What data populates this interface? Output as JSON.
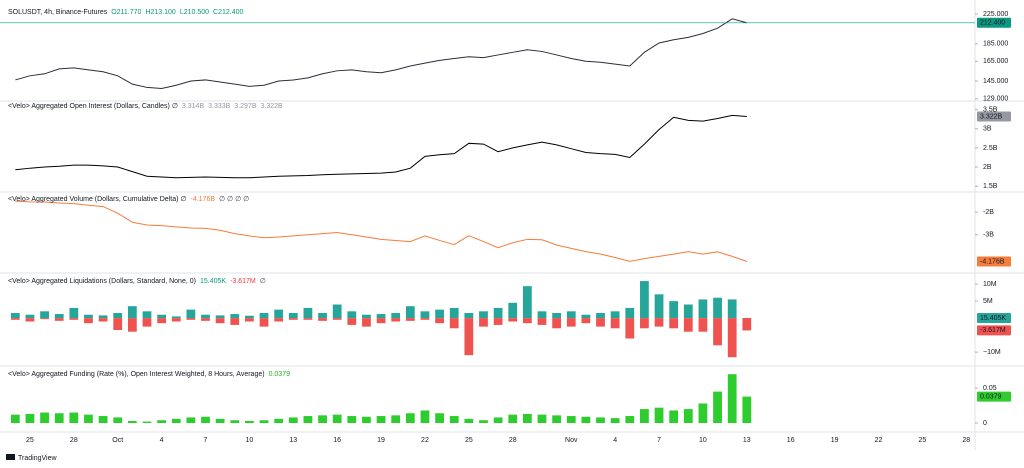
{
  "time_axis": {
    "categories": [
      null,
      "25",
      null,
      null,
      "28",
      null,
      null,
      "Oct",
      null,
      null,
      "4",
      null,
      null,
      "7",
      null,
      null,
      "10",
      null,
      null,
      "13",
      null,
      null,
      "16",
      null,
      null,
      "19",
      null,
      null,
      "22",
      null,
      null,
      "25",
      null,
      null,
      "28",
      null,
      null,
      null,
      "Nov",
      null,
      null,
      "4",
      null,
      null,
      "7",
      null,
      null,
      "10",
      null,
      null,
      "13",
      null,
      null,
      "16",
      null,
      null,
      "19",
      null,
      null,
      "22",
      null,
      null,
      "25",
      null,
      null,
      "28"
    ]
  },
  "brand": "TradingView",
  "chart_data": [
    {
      "type": "line",
      "title": "SOLUSDT, 4h, Binance-Futures",
      "legend_values": [
        "O211.770",
        "H213.100",
        "L210.500",
        "C212.400"
      ],
      "legend_colors": [
        "#089981",
        "#089981",
        "#089981",
        "#089981"
      ],
      "color": "#2a2e39",
      "label_color": "#089981",
      "last_value_label": "212.400",
      "log": true,
      "ylim": [
        128,
        234
      ],
      "yticks": [
        {
          "value": 225,
          "label": "225.000"
        },
        {
          "value": 185,
          "label": "185.000"
        },
        {
          "value": 165,
          "label": "165.000"
        },
        {
          "value": 145,
          "label": "145.000"
        },
        {
          "value": 129,
          "label": "129.000"
        }
      ],
      "values": [
        146,
        150,
        152,
        157,
        158,
        156,
        154,
        150,
        142,
        139,
        138,
        141,
        145,
        146,
        144,
        142,
        140,
        141,
        145,
        146,
        148,
        152,
        155,
        156,
        154,
        153,
        156,
        160,
        163,
        166,
        168,
        170,
        169,
        172,
        175,
        178,
        176,
        172,
        168,
        165,
        164,
        162,
        160,
        175,
        186,
        190,
        193,
        198,
        205,
        218,
        212.4,
        null,
        null,
        null,
        null,
        null,
        null,
        null,
        null,
        null,
        null,
        null,
        null,
        null,
        null,
        null
      ]
    },
    {
      "type": "line",
      "title": "<Velo> Aggregated Open Interest (Dollars, Candles) ∅",
      "legend_values": [
        "3.314B",
        "3.333B",
        "3.297B",
        "3.322B"
      ],
      "legend_colors": [
        "#9598a1",
        "#9598a1",
        "#9598a1",
        "#9598a1"
      ],
      "color": "#000000",
      "label_color": "#9598a1",
      "last_value_label": "3.322B",
      "ylim": [
        1.4,
        3.7
      ],
      "yticks": [
        {
          "value": 3.5,
          "label": "3.5B"
        },
        {
          "value": 3,
          "label": "3B"
        },
        {
          "value": 2.5,
          "label": "2.5B"
        },
        {
          "value": 2,
          "label": "2B"
        },
        {
          "value": 1.5,
          "label": "1.5B"
        }
      ],
      "values": [
        1.93,
        1.97,
        2.0,
        2.02,
        2.05,
        2.05,
        2.03,
        2.0,
        1.88,
        1.76,
        1.74,
        1.72,
        1.73,
        1.74,
        1.73,
        1.72,
        1.72,
        1.74,
        1.76,
        1.77,
        1.78,
        1.8,
        1.81,
        1.82,
        1.83,
        1.84,
        1.87,
        1.97,
        2.28,
        2.32,
        2.35,
        2.62,
        2.6,
        2.4,
        2.5,
        2.58,
        2.65,
        2.58,
        2.48,
        2.38,
        2.35,
        2.33,
        2.25,
        2.6,
        2.98,
        3.3,
        3.22,
        3.2,
        3.27,
        3.35,
        3.322,
        null,
        null,
        null,
        null,
        null,
        null,
        null,
        null,
        null,
        null,
        null,
        null,
        null,
        null,
        null
      ]
    },
    {
      "type": "line",
      "title": "<Velo> Aggregated Volume (Dollars, Cumulative Delta) ∅",
      "legend_values": [
        "-4.176B",
        "∅ ∅ ∅ ∅"
      ],
      "legend_colors": [
        "#f57c3b",
        "#434651"
      ],
      "color": "#f57c3b",
      "last_value_label": "-4.176B",
      "ylim": [
        -4.55,
        -1.25
      ],
      "yticks": [
        {
          "value": -2,
          "label": "-2B"
        },
        {
          "value": -3,
          "label": "-3B"
        }
      ],
      "values": [
        -1.52,
        -1.55,
        -1.56,
        -1.6,
        -1.63,
        -1.7,
        -1.76,
        -2.05,
        -2.45,
        -2.57,
        -2.6,
        -2.65,
        -2.7,
        -2.72,
        -2.8,
        -2.95,
        -3.05,
        -3.13,
        -3.1,
        -3.05,
        -3.0,
        -2.95,
        -2.9,
        -3.0,
        -3.1,
        -3.2,
        -3.25,
        -3.3,
        -3.05,
        -3.25,
        -3.43,
        -3.04,
        -3.3,
        -3.57,
        -3.35,
        -3.2,
        -3.22,
        -3.45,
        -3.6,
        -3.74,
        -3.85,
        -4.0,
        -4.17,
        -4.05,
        -3.95,
        -3.85,
        -3.74,
        -3.85,
        -3.75,
        -3.95,
        -4.176,
        null,
        null,
        null,
        null,
        null,
        null,
        null,
        null,
        null,
        null,
        null,
        null,
        null,
        null,
        null
      ]
    },
    {
      "type": "bar",
      "title": "<Velo> Aggregated Liquidations (Dollars, Standard, None, 0)",
      "legend_values": [
        "15.405K",
        "-3.617M",
        "∅"
      ],
      "legend_colors": [
        "#089981",
        "#f23645",
        "#434651"
      ],
      "ylim": [
        -13.5,
        11.8
      ],
      "yticks": [
        {
          "value": 10,
          "label": "10M"
        },
        {
          "value": 5,
          "label": "5M"
        },
        {
          "value": -10,
          "label": "−10M"
        }
      ],
      "series": [
        {
          "color": "#26a69a",
          "last_value_label": "15.405K",
          "values": [
            1.5,
            1.0,
            2.0,
            1.2,
            3.0,
            1.0,
            0.8,
            1.5,
            3.5,
            2.0,
            1.0,
            0.5,
            2.5,
            1.0,
            0.8,
            1.2,
            0.7,
            1.5,
            2.5,
            1.5,
            3.0,
            1.5,
            4.0,
            2.0,
            1.0,
            1.2,
            1.5,
            3.5,
            2.0,
            2.5,
            3.0,
            1.5,
            2.0,
            3.0,
            4.5,
            9.4,
            2.0,
            1.5,
            2.0,
            1.0,
            1.5,
            2.0,
            3.0,
            10.9,
            7.0,
            5.0,
            4.0,
            5.5,
            6.0,
            5.5,
            0.015405,
            null,
            null,
            null,
            null,
            null,
            null,
            null,
            null,
            null,
            null,
            null,
            null,
            null,
            null,
            null
          ]
        },
        {
          "color": "#ef5350",
          "last_value_label": "-3.617M",
          "values": [
            -0.5,
            -1.0,
            -0.3,
            -0.8,
            -0.5,
            -1.5,
            -1.0,
            -3.5,
            -4.0,
            -2.5,
            -1.5,
            -1.0,
            -0.5,
            -0.8,
            -1.5,
            -2.0,
            -1.0,
            -2.5,
            -1.0,
            -0.5,
            -0.5,
            -0.8,
            -0.5,
            -2.0,
            -2.5,
            -1.5,
            -1.0,
            -0.8,
            -0.5,
            -1.5,
            -3.0,
            -10.9,
            -2.5,
            -2.0,
            -1.0,
            -1.5,
            -2.0,
            -3.0,
            -2.5,
            -1.5,
            -2.5,
            -3.0,
            -6.0,
            -3.0,
            -2.5,
            -3.0,
            -4.0,
            -4.0,
            -8.0,
            -11.5,
            -3.617,
            null,
            null,
            null,
            null,
            null,
            null,
            null,
            null,
            null,
            null,
            null,
            null,
            null,
            null,
            null
          ]
        }
      ]
    },
    {
      "type": "bar",
      "title": "<Velo> Aggregated Funding (Rate (%), Open Interest Weighted, 8 Hours, Average)",
      "legend_values": [
        "0.0379"
      ],
      "legend_colors": [
        "#22b822"
      ],
      "color": "#2ecc2e",
      "last_value_label": "0.0379",
      "ylim": [
        -0.01,
        0.076
      ],
      "yticks": [
        0.05,
        0
      ],
      "values": [
        0.012,
        0.013,
        0.015,
        0.014,
        0.015,
        0.012,
        0.01,
        0.008,
        0.003,
        0.002,
        0.004,
        0.006,
        0.008,
        0.009,
        0.006,
        0.004,
        0.003,
        0.004,
        0.006,
        0.008,
        0.01,
        0.011,
        0.012,
        0.01,
        0.009,
        0.01,
        0.011,
        0.014,
        0.018,
        0.014,
        0.01,
        0.006,
        0.004,
        0.008,
        0.012,
        0.013,
        0.012,
        0.011,
        0.01,
        0.009,
        0.008,
        0.007,
        0.01,
        0.02,
        0.022,
        0.018,
        0.02,
        0.028,
        0.045,
        0.07,
        0.0379,
        null,
        null,
        null,
        null,
        null,
        null,
        null,
        null,
        null,
        null,
        null,
        null,
        null,
        null,
        null
      ]
    }
  ]
}
